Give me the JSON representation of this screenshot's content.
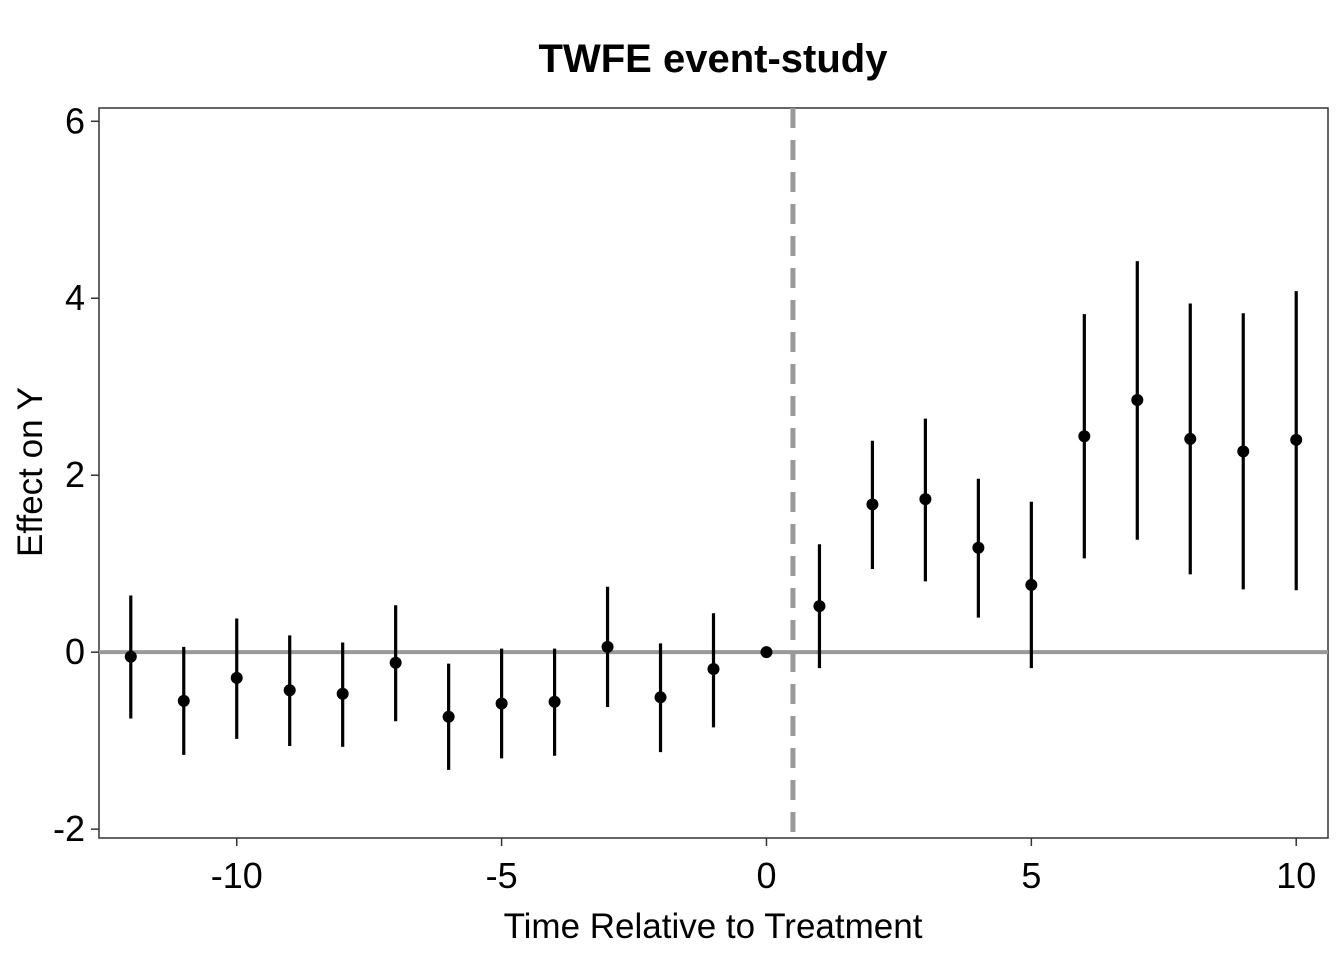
{
  "chart_data": {
    "type": "scatter",
    "title": "TWFE event-study",
    "xlabel": "Time Relative to Treatment",
    "ylabel": "Effect on Y",
    "xlim": [
      -12.6,
      10.6
    ],
    "ylim": [
      -2.1,
      6.15
    ],
    "xticks": [
      -10,
      -5,
      0,
      5,
      10
    ],
    "xtick_labels": [
      "-10",
      "-5",
      "0",
      "5",
      "10"
    ],
    "yticks": [
      -2,
      0,
      2,
      4,
      6
    ],
    "ytick_labels": [
      "-2",
      "0",
      "2",
      "4",
      "6"
    ],
    "grid": false,
    "reference_lines": {
      "horizontal_y": 0,
      "vertical_dashed_x": 0.5
    },
    "points": [
      {
        "x": -12,
        "y": -0.05,
        "lo": -0.75,
        "hi": 0.64
      },
      {
        "x": -11,
        "y": -0.55,
        "lo": -1.16,
        "hi": 0.06
      },
      {
        "x": -10,
        "y": -0.29,
        "lo": -0.98,
        "hi": 0.38
      },
      {
        "x": -9,
        "y": -0.43,
        "lo": -1.06,
        "hi": 0.19
      },
      {
        "x": -8,
        "y": -0.47,
        "lo": -1.07,
        "hi": 0.11
      },
      {
        "x": -7,
        "y": -0.12,
        "lo": -0.78,
        "hi": 0.53
      },
      {
        "x": -6,
        "y": -0.73,
        "lo": -1.33,
        "hi": -0.13
      },
      {
        "x": -5,
        "y": -0.58,
        "lo": -1.2,
        "hi": 0.04
      },
      {
        "x": -4,
        "y": -0.56,
        "lo": -1.17,
        "hi": 0.04
      },
      {
        "x": -3,
        "y": 0.06,
        "lo": -0.62,
        "hi": 0.74
      },
      {
        "x": -2,
        "y": -0.51,
        "lo": -1.13,
        "hi": 0.1
      },
      {
        "x": -1,
        "y": -0.19,
        "lo": -0.85,
        "hi": 0.44
      },
      {
        "x": 0,
        "y": 0.0,
        "lo": 0.0,
        "hi": 0.0
      },
      {
        "x": 1,
        "y": 0.52,
        "lo": -0.18,
        "hi": 1.22
      },
      {
        "x": 2,
        "y": 1.67,
        "lo": 0.94,
        "hi": 2.39
      },
      {
        "x": 3,
        "y": 1.73,
        "lo": 0.8,
        "hi": 2.64
      },
      {
        "x": 4,
        "y": 1.18,
        "lo": 0.39,
        "hi": 1.96
      },
      {
        "x": 5,
        "y": 0.76,
        "lo": -0.18,
        "hi": 1.7
      },
      {
        "x": 6,
        "y": 2.44,
        "lo": 1.06,
        "hi": 3.82
      },
      {
        "x": 7,
        "y": 2.85,
        "lo": 1.27,
        "hi": 4.42
      },
      {
        "x": 8,
        "y": 2.41,
        "lo": 0.88,
        "hi": 3.94
      },
      {
        "x": 9,
        "y": 2.27,
        "lo": 0.71,
        "hi": 3.83
      },
      {
        "x": 10,
        "y": 2.4,
        "lo": 0.7,
        "hi": 4.08
      }
    ],
    "colors": {
      "points": "#000000",
      "zero_line": "#999999",
      "treatment_line": "#999999",
      "panel_border": "#333333"
    }
  }
}
